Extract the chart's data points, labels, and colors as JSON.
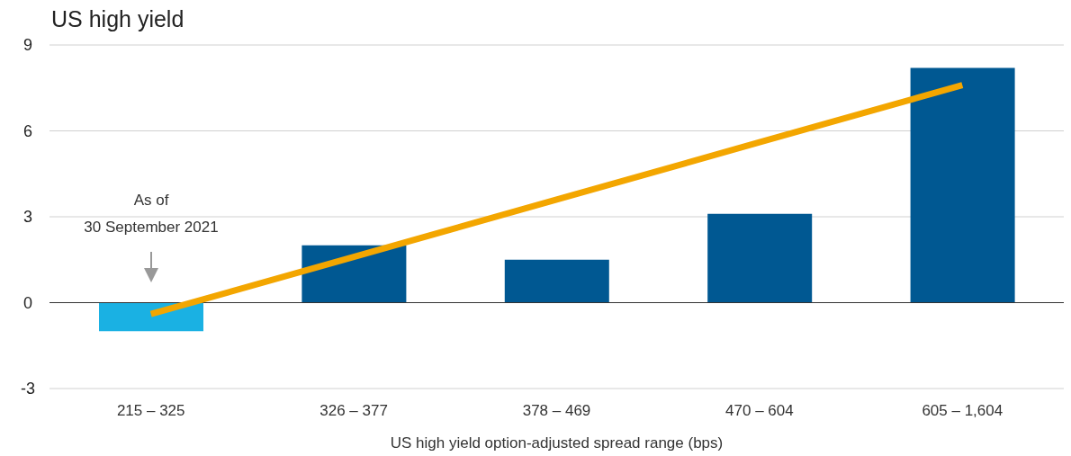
{
  "chart_data": {
    "type": "bar",
    "title": "US high yield",
    "xlabel": "US high yield option-adjusted spread range (bps)",
    "categories": [
      "215 – 325",
      "326 – 377",
      "378 – 469",
      "470 – 604",
      "605 – 1,604"
    ],
    "series": [
      {
        "colors": [
          "#1ab1e3",
          "#005892",
          "#005892",
          "#005892",
          "#005892"
        ],
        "values": [
          -1.0,
          2.0,
          1.5,
          3.1,
          8.2
        ]
      },
      {
        "type": "line",
        "color": "#f3a600",
        "values": [
          -0.4,
          1.6,
          3.6,
          5.6,
          7.6
        ]
      }
    ],
    "ylim": [
      -3,
      9
    ],
    "yticks": [
      -3,
      0,
      3,
      6,
      9
    ],
    "grid": "y",
    "legend": false,
    "marker": "none",
    "line_style": "solid",
    "annotations": [
      "As of\n30 September 2021"
    ]
  }
}
